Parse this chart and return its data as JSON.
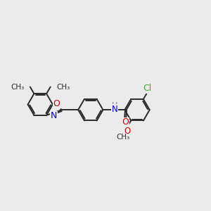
{
  "bg_color": "#ebebeb",
  "bond_color": "#2a2a2a",
  "bond_width": 1.4,
  "atom_colors": {
    "O": "#cc0000",
    "N": "#0000cc",
    "Cl": "#3aaa3a",
    "H": "#708090",
    "C": "#2a2a2a"
  },
  "font_size_atoms": 8.5,
  "methyl_font_size": 7.5,
  "figsize": [
    3.0,
    3.0
  ],
  "dpi": 100,
  "xlim": [
    0,
    10
  ],
  "ylim": [
    0,
    10
  ]
}
